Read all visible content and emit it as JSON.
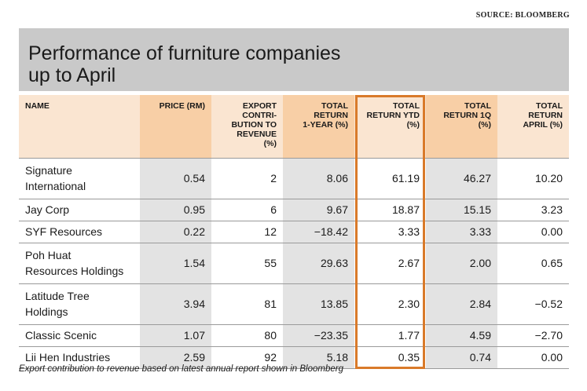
{
  "source": "SOURCE: BLOOMBERG",
  "title_line1": "Performance of furniture companies",
  "title_line2": "up to April",
  "footnote": "Export contribution to revenue based on latest annual report shown in Bloomberg",
  "colors": {
    "header_dark": "#f8cfa6",
    "header_light": "#fae5d1",
    "shade": "#e3e3e3",
    "highlight": "#d97a2a",
    "title_bar": "#c9c9c9"
  },
  "chart_data": {
    "type": "table",
    "columns": [
      [
        "NAME"
      ],
      [
        "PRICE (RM)"
      ],
      [
        "EXPORT",
        "CONTRI-",
        "BUTION TO",
        "REVENUE",
        "(%)"
      ],
      [
        "TOTAL",
        "RETURN",
        "1-YEAR (%)"
      ],
      [
        "TOTAL",
        "RETURN YTD",
        "(%)"
      ],
      [
        "TOTAL",
        "RETURN 1Q",
        "(%)"
      ],
      [
        "TOTAL",
        "RETURN",
        "APRIL (%)"
      ]
    ],
    "rows": [
      {
        "name": [
          "Signature",
          "International"
        ],
        "values": [
          "0.54",
          "2",
          "8.06",
          "61.19",
          "46.27",
          "10.20"
        ]
      },
      {
        "name": [
          "Jay Corp"
        ],
        "values": [
          "0.95",
          "6",
          "9.67",
          "18.87",
          "15.15",
          "3.23"
        ]
      },
      {
        "name": [
          "SYF Resources"
        ],
        "values": [
          "0.22",
          "12",
          "−18.42",
          "3.33",
          "3.33",
          "0.00"
        ]
      },
      {
        "name": [
          "Poh Huat",
          "Resources Holdings"
        ],
        "values": [
          "1.54",
          "55",
          "29.63",
          "2.67",
          "2.00",
          "0.65"
        ]
      },
      {
        "name": [
          "Latitude Tree",
          "Holdings"
        ],
        "values": [
          "3.94",
          "81",
          "13.85",
          "2.30",
          "2.84",
          "−0.52"
        ]
      },
      {
        "name": [
          "Classic Scenic"
        ],
        "values": [
          "1.07",
          "80",
          "−23.35",
          "1.77",
          "4.59",
          "−2.70"
        ]
      },
      {
        "name": [
          "Lii Hen Industries"
        ],
        "values": [
          "2.59",
          "92",
          "5.18",
          "0.35",
          "0.74",
          "0.00"
        ]
      }
    ],
    "highlighted_column": "TOTAL RETURN YTD (%)"
  }
}
